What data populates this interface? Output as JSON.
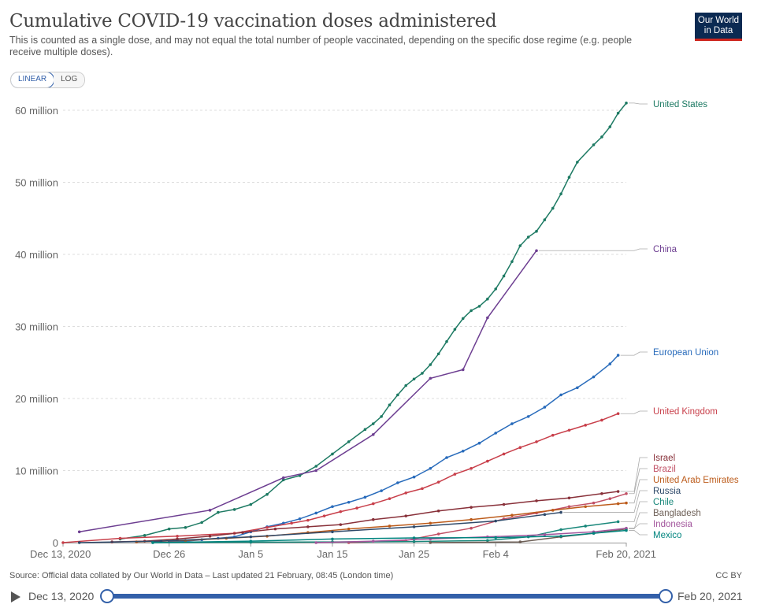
{
  "header": {
    "title": "Cumulative COVID-19 vaccination doses administered",
    "subtitle": "This is counted as a single dose, and may not equal the total number of people vaccinated, depending on the specific dose regime (e.g. people receive multiple doses).",
    "logo_line1": "Our World",
    "logo_line2": "in Data"
  },
  "scale_toggle": {
    "linear": "LINEAR",
    "log": "LOG",
    "selected": "LINEAR"
  },
  "footer": {
    "source": "Source: Official data collated by Our World in Data – Last updated 21 February, 08:45 (London time)",
    "license": "CC BY"
  },
  "timeline": {
    "start_label": "Dec 13, 2020",
    "end_label": "Feb 20, 2021"
  },
  "chart_data": {
    "type": "line",
    "title": "Cumulative COVID-19 vaccination doses administered",
    "x_type": "date",
    "xlim": [
      "2020-12-13",
      "2021-02-20"
    ],
    "ylim": [
      0,
      60000000
    ],
    "x_ticks": [
      "Dec 13, 2020",
      "Dec 26",
      "Jan 5",
      "Jan 15",
      "Jan 25",
      "Feb 4",
      "Feb 20, 2021"
    ],
    "x_tick_dates": [
      "2020-12-13",
      "2020-12-26",
      "2021-01-05",
      "2021-01-15",
      "2021-01-25",
      "2021-02-04",
      "2021-02-20"
    ],
    "y_ticks": [
      0,
      10000000,
      20000000,
      30000000,
      40000000,
      50000000,
      60000000
    ],
    "y_tick_labels": [
      "0",
      "10 million",
      "20 million",
      "30 million",
      "40 million",
      "50 million",
      "60 million"
    ],
    "grid": "horizontal dashed",
    "legend": "right, labels at line ends",
    "series": [
      {
        "name": "United States",
        "color": "#1d7a63",
        "points": [
          [
            "2020-12-20",
            500000
          ],
          [
            "2020-12-23",
            1000000
          ],
          [
            "2020-12-26",
            1900000
          ],
          [
            "2020-12-28",
            2100000
          ],
          [
            "2020-12-30",
            2800000
          ],
          [
            "2021-01-01",
            4200000
          ],
          [
            "2021-01-03",
            4600000
          ],
          [
            "2021-01-05",
            5300000
          ],
          [
            "2021-01-07",
            6700000
          ],
          [
            "2021-01-09",
            8700000
          ],
          [
            "2021-01-11",
            9300000
          ],
          [
            "2021-01-13",
            10600000
          ],
          [
            "2021-01-15",
            12300000
          ],
          [
            "2021-01-17",
            14000000
          ],
          [
            "2021-01-19",
            15700000
          ],
          [
            "2021-01-20",
            16500000
          ],
          [
            "2021-01-21",
            17500000
          ],
          [
            "2021-01-22",
            19100000
          ],
          [
            "2021-01-23",
            20500000
          ],
          [
            "2021-01-24",
            21800000
          ],
          [
            "2021-01-25",
            22700000
          ],
          [
            "2021-01-26",
            23500000
          ],
          [
            "2021-01-27",
            24700000
          ],
          [
            "2021-01-28",
            26200000
          ],
          [
            "2021-01-29",
            27900000
          ],
          [
            "2021-01-30",
            29600000
          ],
          [
            "2021-01-31",
            31100000
          ],
          [
            "2021-02-01",
            32200000
          ],
          [
            "2021-02-02",
            32800000
          ],
          [
            "2021-02-03",
            33800000
          ],
          [
            "2021-02-04",
            35200000
          ],
          [
            "2021-02-05",
            37000000
          ],
          [
            "2021-02-06",
            39000000
          ],
          [
            "2021-02-07",
            41200000
          ],
          [
            "2021-02-08",
            42400000
          ],
          [
            "2021-02-09",
            43200000
          ],
          [
            "2021-02-10",
            44800000
          ],
          [
            "2021-02-11",
            46400000
          ],
          [
            "2021-02-12",
            48400000
          ],
          [
            "2021-02-13",
            50700000
          ],
          [
            "2021-02-14",
            52800000
          ],
          [
            "2021-02-16",
            55200000
          ],
          [
            "2021-02-17",
            56300000
          ],
          [
            "2021-02-18",
            57700000
          ],
          [
            "2021-02-19",
            59600000
          ],
          [
            "2021-02-20",
            61000000
          ]
        ]
      },
      {
        "name": "China",
        "color": "#6d3e91",
        "points": [
          [
            "2020-12-15",
            1500000
          ],
          [
            "2020-12-31",
            4500000
          ],
          [
            "2021-01-09",
            9000000
          ],
          [
            "2021-01-13",
            10000000
          ],
          [
            "2021-01-20",
            15000000
          ],
          [
            "2021-01-27",
            22800000
          ],
          [
            "2021-01-31",
            24000000
          ],
          [
            "2021-02-03",
            31200000
          ],
          [
            "2021-02-09",
            40520000
          ]
        ]
      },
      {
        "name": "European Union",
        "color": "#286bbb",
        "points": [
          [
            "2020-12-26",
            100000
          ],
          [
            "2020-12-28",
            200000
          ],
          [
            "2020-12-30",
            400000
          ],
          [
            "2021-01-01",
            600000
          ],
          [
            "2021-01-03",
            800000
          ],
          [
            "2021-01-05",
            1500000
          ],
          [
            "2021-01-07",
            2200000
          ],
          [
            "2021-01-09",
            2700000
          ],
          [
            "2021-01-11",
            3300000
          ],
          [
            "2021-01-13",
            4100000
          ],
          [
            "2021-01-15",
            5000000
          ],
          [
            "2021-01-17",
            5600000
          ],
          [
            "2021-01-19",
            6300000
          ],
          [
            "2021-01-21",
            7200000
          ],
          [
            "2021-01-23",
            8300000
          ],
          [
            "2021-01-25",
            9100000
          ],
          [
            "2021-01-27",
            10300000
          ],
          [
            "2021-01-29",
            11800000
          ],
          [
            "2021-01-31",
            12700000
          ],
          [
            "2021-02-02",
            13800000
          ],
          [
            "2021-02-04",
            15200000
          ],
          [
            "2021-02-06",
            16500000
          ],
          [
            "2021-02-08",
            17500000
          ],
          [
            "2021-02-10",
            18800000
          ],
          [
            "2021-02-12",
            20500000
          ],
          [
            "2021-02-14",
            21500000
          ],
          [
            "2021-02-16",
            23000000
          ],
          [
            "2021-02-18",
            24800000
          ],
          [
            "2021-02-19",
            26000000
          ]
        ]
      },
      {
        "name": "United Kingdom",
        "color": "#c83f4a",
        "points": [
          [
            "2020-12-13",
            0
          ],
          [
            "2020-12-20",
            600000
          ],
          [
            "2020-12-27",
            900000
          ],
          [
            "2021-01-03",
            1300000
          ],
          [
            "2021-01-07",
            2100000
          ],
          [
            "2021-01-10",
            2700000
          ],
          [
            "2021-01-12",
            3100000
          ],
          [
            "2021-01-14",
            3700000
          ],
          [
            "2021-01-16",
            4300000
          ],
          [
            "2021-01-18",
            4800000
          ],
          [
            "2021-01-20",
            5400000
          ],
          [
            "2021-01-22",
            6100000
          ],
          [
            "2021-01-24",
            6900000
          ],
          [
            "2021-01-26",
            7500000
          ],
          [
            "2021-01-28",
            8400000
          ],
          [
            "2021-01-30",
            9500000
          ],
          [
            "2021-02-01",
            10300000
          ],
          [
            "2021-02-03",
            11300000
          ],
          [
            "2021-02-05",
            12300000
          ],
          [
            "2021-02-07",
            13200000
          ],
          [
            "2021-02-09",
            14000000
          ],
          [
            "2021-02-11",
            14900000
          ],
          [
            "2021-02-13",
            15600000
          ],
          [
            "2021-02-15",
            16300000
          ],
          [
            "2021-02-17",
            17000000
          ],
          [
            "2021-02-19",
            17900000
          ]
        ]
      },
      {
        "name": "Israel",
        "color": "#883039",
        "points": [
          [
            "2020-12-19",
            100000
          ],
          [
            "2020-12-23",
            200000
          ],
          [
            "2020-12-27",
            500000
          ],
          [
            "2020-12-31",
            900000
          ],
          [
            "2021-01-04",
            1400000
          ],
          [
            "2021-01-08",
            1900000
          ],
          [
            "2021-01-12",
            2200000
          ],
          [
            "2021-01-16",
            2500000
          ],
          [
            "2021-01-20",
            3200000
          ],
          [
            "2021-01-24",
            3700000
          ],
          [
            "2021-01-28",
            4400000
          ],
          [
            "2021-02-01",
            4900000
          ],
          [
            "2021-02-05",
            5300000
          ],
          [
            "2021-02-09",
            5800000
          ],
          [
            "2021-02-13",
            6200000
          ],
          [
            "2021-02-17",
            6800000
          ],
          [
            "2021-02-19",
            7100000
          ]
        ]
      },
      {
        "name": "Brazil",
        "color": "#c15065",
        "points": [
          [
            "2021-01-17",
            0
          ],
          [
            "2021-01-24",
            300000
          ],
          [
            "2021-01-28",
            1200000
          ],
          [
            "2021-02-01",
            2000000
          ],
          [
            "2021-02-05",
            3300000
          ],
          [
            "2021-02-09",
            4100000
          ],
          [
            "2021-02-13",
            5000000
          ],
          [
            "2021-02-16",
            5500000
          ],
          [
            "2021-02-18",
            6100000
          ],
          [
            "2021-02-20",
            6800000
          ]
        ]
      },
      {
        "name": "United Arab Emirates",
        "color": "#bc5b1a",
        "points": [
          [
            "2020-12-22",
            100000
          ],
          [
            "2020-12-28",
            300000
          ],
          [
            "2021-01-02",
            600000
          ],
          [
            "2021-01-07",
            900000
          ],
          [
            "2021-01-12",
            1400000
          ],
          [
            "2021-01-17",
            1900000
          ],
          [
            "2021-01-22",
            2300000
          ],
          [
            "2021-01-27",
            2700000
          ],
          [
            "2021-02-01",
            3200000
          ],
          [
            "2021-02-06",
            3800000
          ],
          [
            "2021-02-11",
            4500000
          ],
          [
            "2021-02-15",
            5000000
          ],
          [
            "2021-02-19",
            5400000
          ],
          [
            "2021-02-20",
            5500000
          ]
        ]
      },
      {
        "name": "Russia",
        "color": "#2f4a6a",
        "points": [
          [
            "2020-12-15",
            0
          ],
          [
            "2020-12-25",
            200000
          ],
          [
            "2021-01-05",
            800000
          ],
          [
            "2021-01-15",
            1500000
          ],
          [
            "2021-01-25",
            2200000
          ],
          [
            "2021-02-04",
            3000000
          ],
          [
            "2021-02-10",
            3900000
          ],
          [
            "2021-02-12",
            4200000
          ]
        ]
      },
      {
        "name": "Chile",
        "color": "#18877a",
        "points": [
          [
            "2020-12-24",
            0
          ],
          [
            "2021-01-05",
            50000
          ],
          [
            "2021-01-15",
            100000
          ],
          [
            "2021-01-25",
            150000
          ],
          [
            "2021-02-03",
            300000
          ],
          [
            "2021-02-08",
            800000
          ],
          [
            "2021-02-12",
            1800000
          ],
          [
            "2021-02-15",
            2300000
          ],
          [
            "2021-02-19",
            2900000
          ]
        ]
      },
      {
        "name": "Bangladesh",
        "color": "#6d5f56",
        "points": [
          [
            "2021-01-27",
            0
          ],
          [
            "2021-02-07",
            100000
          ],
          [
            "2021-02-12",
            800000
          ],
          [
            "2021-02-16",
            1300000
          ],
          [
            "2021-02-20",
            1900000
          ]
        ]
      },
      {
        "name": "Indonesia",
        "color": "#a2559c",
        "points": [
          [
            "2021-01-13",
            0
          ],
          [
            "2021-01-20",
            200000
          ],
          [
            "2021-01-27",
            500000
          ],
          [
            "2021-02-03",
            800000
          ],
          [
            "2021-02-10",
            1100000
          ],
          [
            "2021-02-16",
            1500000
          ],
          [
            "2021-02-20",
            2000000
          ]
        ]
      },
      {
        "name": "Mexico",
        "color": "#00847e",
        "points": [
          [
            "2020-12-24",
            0
          ],
          [
            "2021-01-05",
            200000
          ],
          [
            "2021-01-15",
            500000
          ],
          [
            "2021-01-25",
            650000
          ],
          [
            "2021-02-04",
            700000
          ],
          [
            "2021-02-12",
            900000
          ],
          [
            "2021-02-16",
            1300000
          ],
          [
            "2021-02-20",
            1700000
          ]
        ]
      }
    ]
  }
}
